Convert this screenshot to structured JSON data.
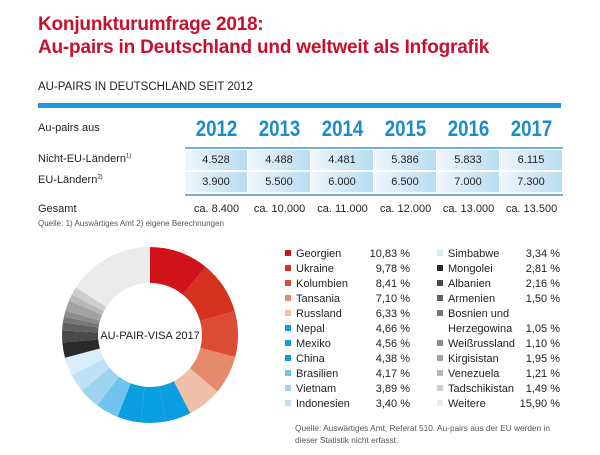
{
  "title_line1": "Konjunkturumfrage 2018:",
  "title_line2": "Au-pairs in Deutschland und weltweit als Infografik",
  "table": {
    "subtitle": "AU-PAIRS IN DEUTSCHLAND SEIT 2012",
    "header_label": "Au-pairs aus",
    "years": [
      "2012",
      "2013",
      "2014",
      "2015",
      "2016",
      "2017"
    ],
    "rows": [
      {
        "label": "Nicht-EU-Ländern",
        "footnote": "1)",
        "values": [
          "4.528",
          "4.488",
          "4.481",
          "5.386",
          "5.833",
          "6.115"
        ]
      },
      {
        "label": "EU-Ländern",
        "footnote": "2)",
        "values": [
          "3.900",
          "5.500",
          "6.000",
          "6.500",
          "7.000",
          "7.300"
        ]
      }
    ],
    "total_label": "Gesamt",
    "totals": [
      "ca. 8.400",
      "ca. 10.000",
      "ca. 11.000",
      "ca. 12.000",
      "ca. 13.000",
      "ca. 13.500"
    ],
    "source": "Quelle:  1) Auswärtiges Amt  2) eigene Berechnungen"
  },
  "chart_data": {
    "type": "pie",
    "title": "AU-PAIR-VISA 2017",
    "donut": true,
    "slices": [
      {
        "label": "Georgien",
        "value": 10.83,
        "display": "10,83 %",
        "color": "#d0121b"
      },
      {
        "label": "Ukraine",
        "value": 9.78,
        "display": "9,78 %",
        "color": "#d6301f"
      },
      {
        "label": "Kolumbien",
        "value": 8.41,
        "display": "8,41 %",
        "color": "#dc4b33"
      },
      {
        "label": "Tansania",
        "value": 7.1,
        "display": "7,10 %",
        "color": "#e68a6e"
      },
      {
        "label": "Russland",
        "value": 6.33,
        "display": "6,33 %",
        "color": "#efbfa8"
      },
      {
        "label": "Nepal",
        "value": 4.66,
        "display": "4,66 %",
        "color": "#0a9ee0"
      },
      {
        "label": "Mexiko",
        "value": 4.56,
        "display": "4,56 %",
        "color": "#0a9ee0"
      },
      {
        "label": "China",
        "value": 4.38,
        "display": "4,38 %",
        "color": "#0a9ee0"
      },
      {
        "label": "Brasilien",
        "value": 4.17,
        "display": "4,17 %",
        "color": "#6fc3ee"
      },
      {
        "label": "Vietnam",
        "value": 3.89,
        "display": "3,89 %",
        "color": "#9dd3f1"
      },
      {
        "label": "Indonesien",
        "value": 3.4,
        "display": "3,40 %",
        "color": "#bde1f5"
      },
      {
        "label": "Simbabwe",
        "value": 3.34,
        "display": "3,34 %",
        "color": "#d9eef9"
      },
      {
        "label": "Mongolei",
        "value": 2.81,
        "display": "2,81 %",
        "color": "#2a2a2a"
      },
      {
        "label": "Albanien",
        "value": 2.16,
        "display": "2,16 %",
        "color": "#4a4a4a"
      },
      {
        "label": "Armenien",
        "value": 1.5,
        "display": "1,50 %",
        "color": "#606060"
      },
      {
        "label": "Bosnien und Herzegowina",
        "label_line1": "Bosnien und",
        "label_line2": "Herzegowina",
        "value": 1.05,
        "display": "1,05 %",
        "color": "#777777"
      },
      {
        "label": "Weißrussland",
        "value": 1.1,
        "display": "1,10 %",
        "color": "#8c8c8c"
      },
      {
        "label": "Kirgisistan",
        "value": 1.95,
        "display": "1,95 %",
        "color": "#a2a2a2"
      },
      {
        "label": "Venezuela",
        "value": 1.21,
        "display": "1,21 %",
        "color": "#b8b8b8"
      },
      {
        "label": "Tadschikistan",
        "value": 1.49,
        "display": "1,49 %",
        "color": "#cdcdcd"
      },
      {
        "label": "Weitere",
        "value": 15.9,
        "display": "15,90 %",
        "color": "#ebebeb"
      }
    ],
    "legend_position": "right"
  },
  "source2": "Quelle: Auswärtiges Amt, Referat 510. Au-pairs aus der EU werden in dieser Statistik nicht erfasst."
}
